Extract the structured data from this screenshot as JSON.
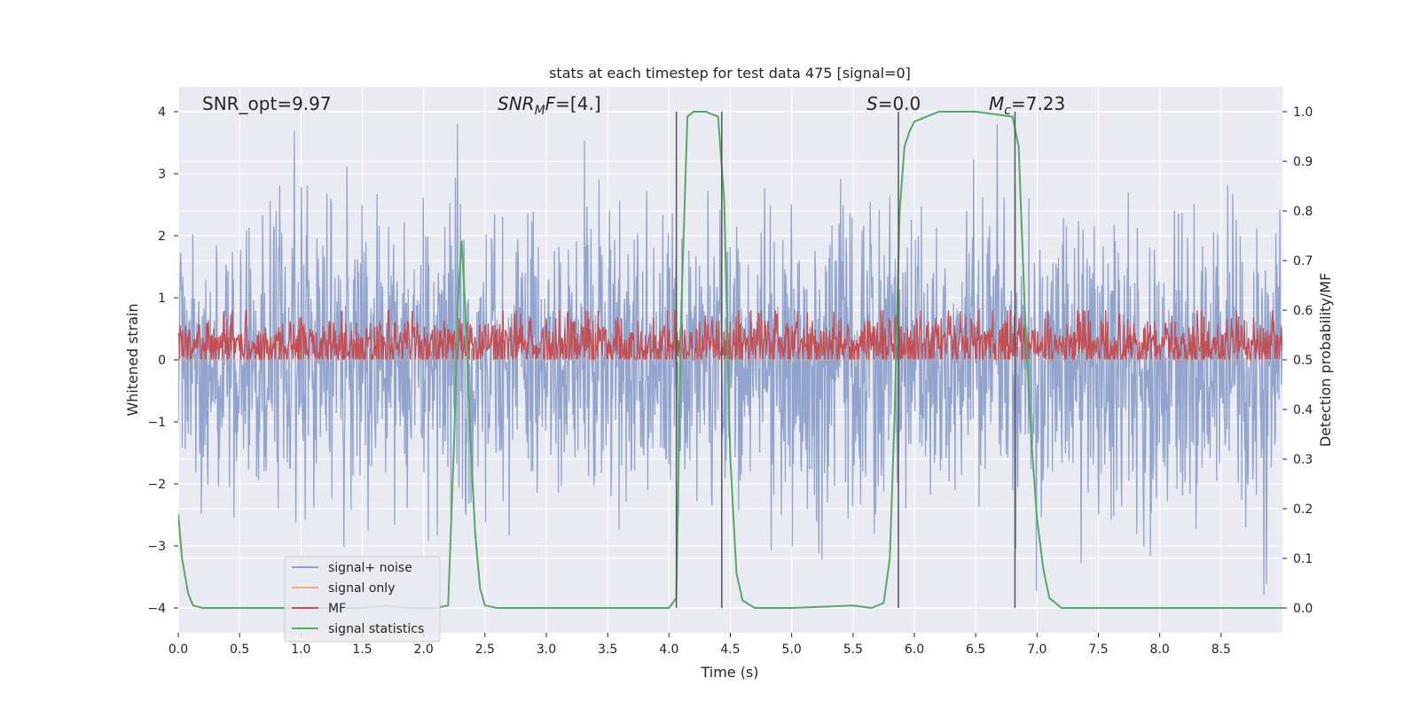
{
  "chart_data": {
    "type": "line",
    "title": "stats at each timestep for test data 475 [signal=0]",
    "xlabel": "Time (s)",
    "ylabel_left": "Whitened strain",
    "ylabel_right": "Detection probability/MF",
    "xlim": [
      0,
      9
    ],
    "ylim_left": [
      -4.4,
      4.4
    ],
    "ylim_right": [
      -0.05,
      1.05
    ],
    "x_ticks": [
      0.0,
      0.5,
      1.0,
      1.5,
      2.0,
      2.5,
      3.0,
      3.5,
      4.0,
      4.5,
      5.0,
      5.5,
      6.0,
      6.5,
      7.0,
      7.5,
      8.0,
      8.5
    ],
    "x_tick_labels": [
      "0.0",
      "0.5",
      "1.0",
      "1.5",
      "2.0",
      "2.5",
      "3.0",
      "3.5",
      "4.0",
      "4.5",
      "5.0",
      "5.5",
      "6.0",
      "6.5",
      "7.0",
      "7.5",
      "8.0",
      "8.5"
    ],
    "y_left_ticks": [
      -4,
      -3,
      -2,
      -1,
      0,
      1,
      2,
      3,
      4
    ],
    "y_left_tick_labels": [
      "−4",
      "−3",
      "−2",
      "−1",
      "0",
      "1",
      "2",
      "3",
      "4"
    ],
    "y_right_ticks": [
      0.0,
      0.1,
      0.2,
      0.3,
      0.4,
      0.5,
      0.6,
      0.7,
      0.8,
      0.9,
      1.0
    ],
    "y_right_tick_labels": [
      "0.0",
      "0.1",
      "0.2",
      "0.3",
      "0.4",
      "0.5",
      "0.6",
      "0.7",
      "0.8",
      "0.9",
      "1.0"
    ],
    "grid": true,
    "annotations": {
      "snr_opt": "SNR_opt=9.97",
      "snr_mf_main": "SNR",
      "snr_mf_sub": "M",
      "snr_mf_tail": "F",
      "snr_mf_value": "=[4.]",
      "s_symbol": "S",
      "s_value": "=0.0",
      "mc_symbol": "M",
      "mc_sub": "c",
      "mc_value": "=7.23"
    },
    "vertical_lines_x": [
      4.06,
      4.43,
      5.87,
      6.82
    ],
    "series": [
      {
        "name": "signal+ noise",
        "color": "#8da0cb",
        "axis": "left",
        "kind": "noise",
        "sigma": 1.0,
        "n_points": 2200,
        "peak_range": [
          -3.8,
          3.8
        ]
      },
      {
        "name": "signal only",
        "color": "#f0a88a",
        "axis": "left",
        "kind": "flat",
        "value": 0.0
      },
      {
        "name": "MF",
        "color": "#c44e52",
        "axis": "right",
        "kind": "noise",
        "mean": 0.53,
        "spread": 0.03,
        "min": 0.5,
        "max": 0.6,
        "n_points": 1800
      },
      {
        "name": "signal statistics",
        "color": "#55a868",
        "axis": "right",
        "kind": "line",
        "x": [
          0.0,
          0.03,
          0.08,
          0.12,
          0.2,
          0.3,
          1.5,
          1.7,
          1.9,
          2.1,
          2.2,
          2.25,
          2.28,
          2.31,
          2.34,
          2.38,
          2.42,
          2.46,
          2.5,
          2.6,
          4.0,
          4.06,
          4.1,
          4.15,
          4.2,
          4.3,
          4.4,
          4.45,
          4.5,
          4.55,
          4.6,
          4.7,
          5.0,
          5.5,
          5.65,
          5.75,
          5.8,
          5.84,
          5.88,
          5.92,
          5.96,
          6.0,
          6.1,
          6.2,
          6.3,
          6.5,
          6.8,
          6.85,
          6.9,
          6.95,
          7.0,
          7.05,
          7.1,
          7.2,
          9.0
        ],
        "y": [
          0.19,
          0.1,
          0.03,
          0.005,
          0.0,
          0.0,
          0.0,
          0.005,
          0.0,
          0.0,
          0.005,
          0.35,
          0.62,
          0.74,
          0.6,
          0.35,
          0.15,
          0.04,
          0.005,
          0.0,
          0.0,
          0.02,
          0.6,
          0.99,
          1.0,
          1.0,
          0.99,
          0.82,
          0.3,
          0.07,
          0.015,
          0.0,
          0.0,
          0.005,
          0.0,
          0.01,
          0.1,
          0.4,
          0.8,
          0.93,
          0.96,
          0.98,
          0.99,
          1.0,
          1.0,
          1.0,
          0.99,
          0.93,
          0.6,
          0.35,
          0.18,
          0.08,
          0.02,
          0.0,
          0.0
        ]
      }
    ],
    "legend_position": "lower-left"
  }
}
